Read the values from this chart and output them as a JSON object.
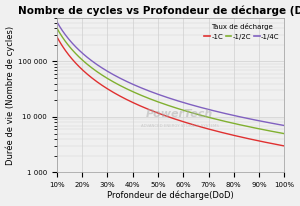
{
  "title": "Nombre de cycles vs Profondeur de décharge (DoD)",
  "xlabel": "Profondeur de décharge(DoD)",
  "ylabel": "Durée de vie (Nombre de cycles)",
  "legend_title": "Taux de décharge",
  "legend_labels": [
    "-1C",
    "-1/2C",
    "-1/4C"
  ],
  "line_colors": [
    "#e03030",
    "#80b030",
    "#8060c0"
  ],
  "x_ticks": [
    0.1,
    0.2,
    0.3,
    0.4,
    0.5,
    0.6,
    0.7,
    0.8,
    0.9,
    1.0
  ],
  "x_tick_labels": [
    "10%",
    "20%",
    "30%",
    "40%",
    "50%",
    "60%",
    "70%",
    "80%",
    "90%",
    "100%"
  ],
  "ylim": [
    1000,
    600000
  ],
  "xlim": [
    0.1,
    1.0
  ],
  "background_color": "#f0f0f0",
  "grid_color": "#d0d0d0",
  "title_fontsize": 7.5,
  "axis_label_fontsize": 6.0,
  "tick_fontsize": 5.0,
  "legend_fontsize": 5.0,
  "curve_params_1C": {
    "A": 2800,
    "b": 1.55
  },
  "curve_params_12C": {
    "A": 4000,
    "b": 1.5
  },
  "curve_params_14C": {
    "A": 6000,
    "b": 1.45
  }
}
